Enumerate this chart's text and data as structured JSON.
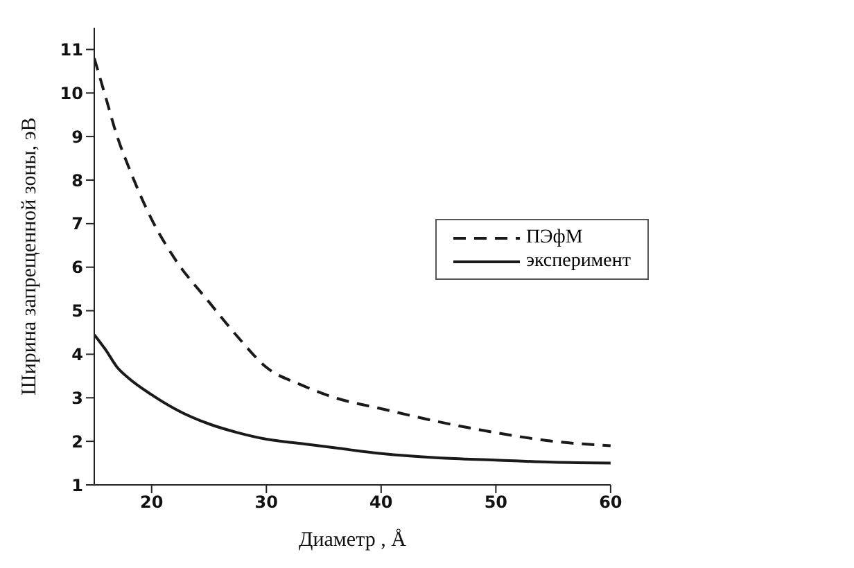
{
  "chart_data": {
    "type": "line",
    "xlabel": "Диаметр , Å",
    "ylabel": "Ширина запрещенной зоны, эВ",
    "x": [
      15,
      16,
      17,
      18,
      20,
      22,
      25,
      27.5,
      30,
      33,
      36,
      40,
      45,
      50,
      55,
      60
    ],
    "series": [
      {
        "name": "ПЭфМ",
        "color": "#1a1a1a",
        "line_style": "dashed",
        "values": [
          10.8,
          9.9,
          9.0,
          8.3,
          7.1,
          6.2,
          5.2,
          4.4,
          3.7,
          3.3,
          3.0,
          2.75,
          2.45,
          2.2,
          2.0,
          1.9
        ]
      },
      {
        "name": "эксперимент",
        "color": "#1a1a1a",
        "line_style": "solid",
        "values": [
          4.45,
          4.1,
          3.7,
          3.45,
          3.07,
          2.75,
          2.4,
          2.2,
          2.05,
          1.95,
          1.85,
          1.72,
          1.62,
          1.57,
          1.52,
          1.5
        ]
      }
    ],
    "xlim": [
      15,
      60
    ],
    "xticks": [
      20,
      30,
      40,
      50,
      60
    ],
    "ylim": [
      1,
      11.5
    ],
    "yticks": [
      1,
      2,
      3,
      4,
      5,
      6,
      7,
      8,
      9,
      10,
      11
    ],
    "grid": false,
    "legend": "right",
    "marker": "none"
  }
}
